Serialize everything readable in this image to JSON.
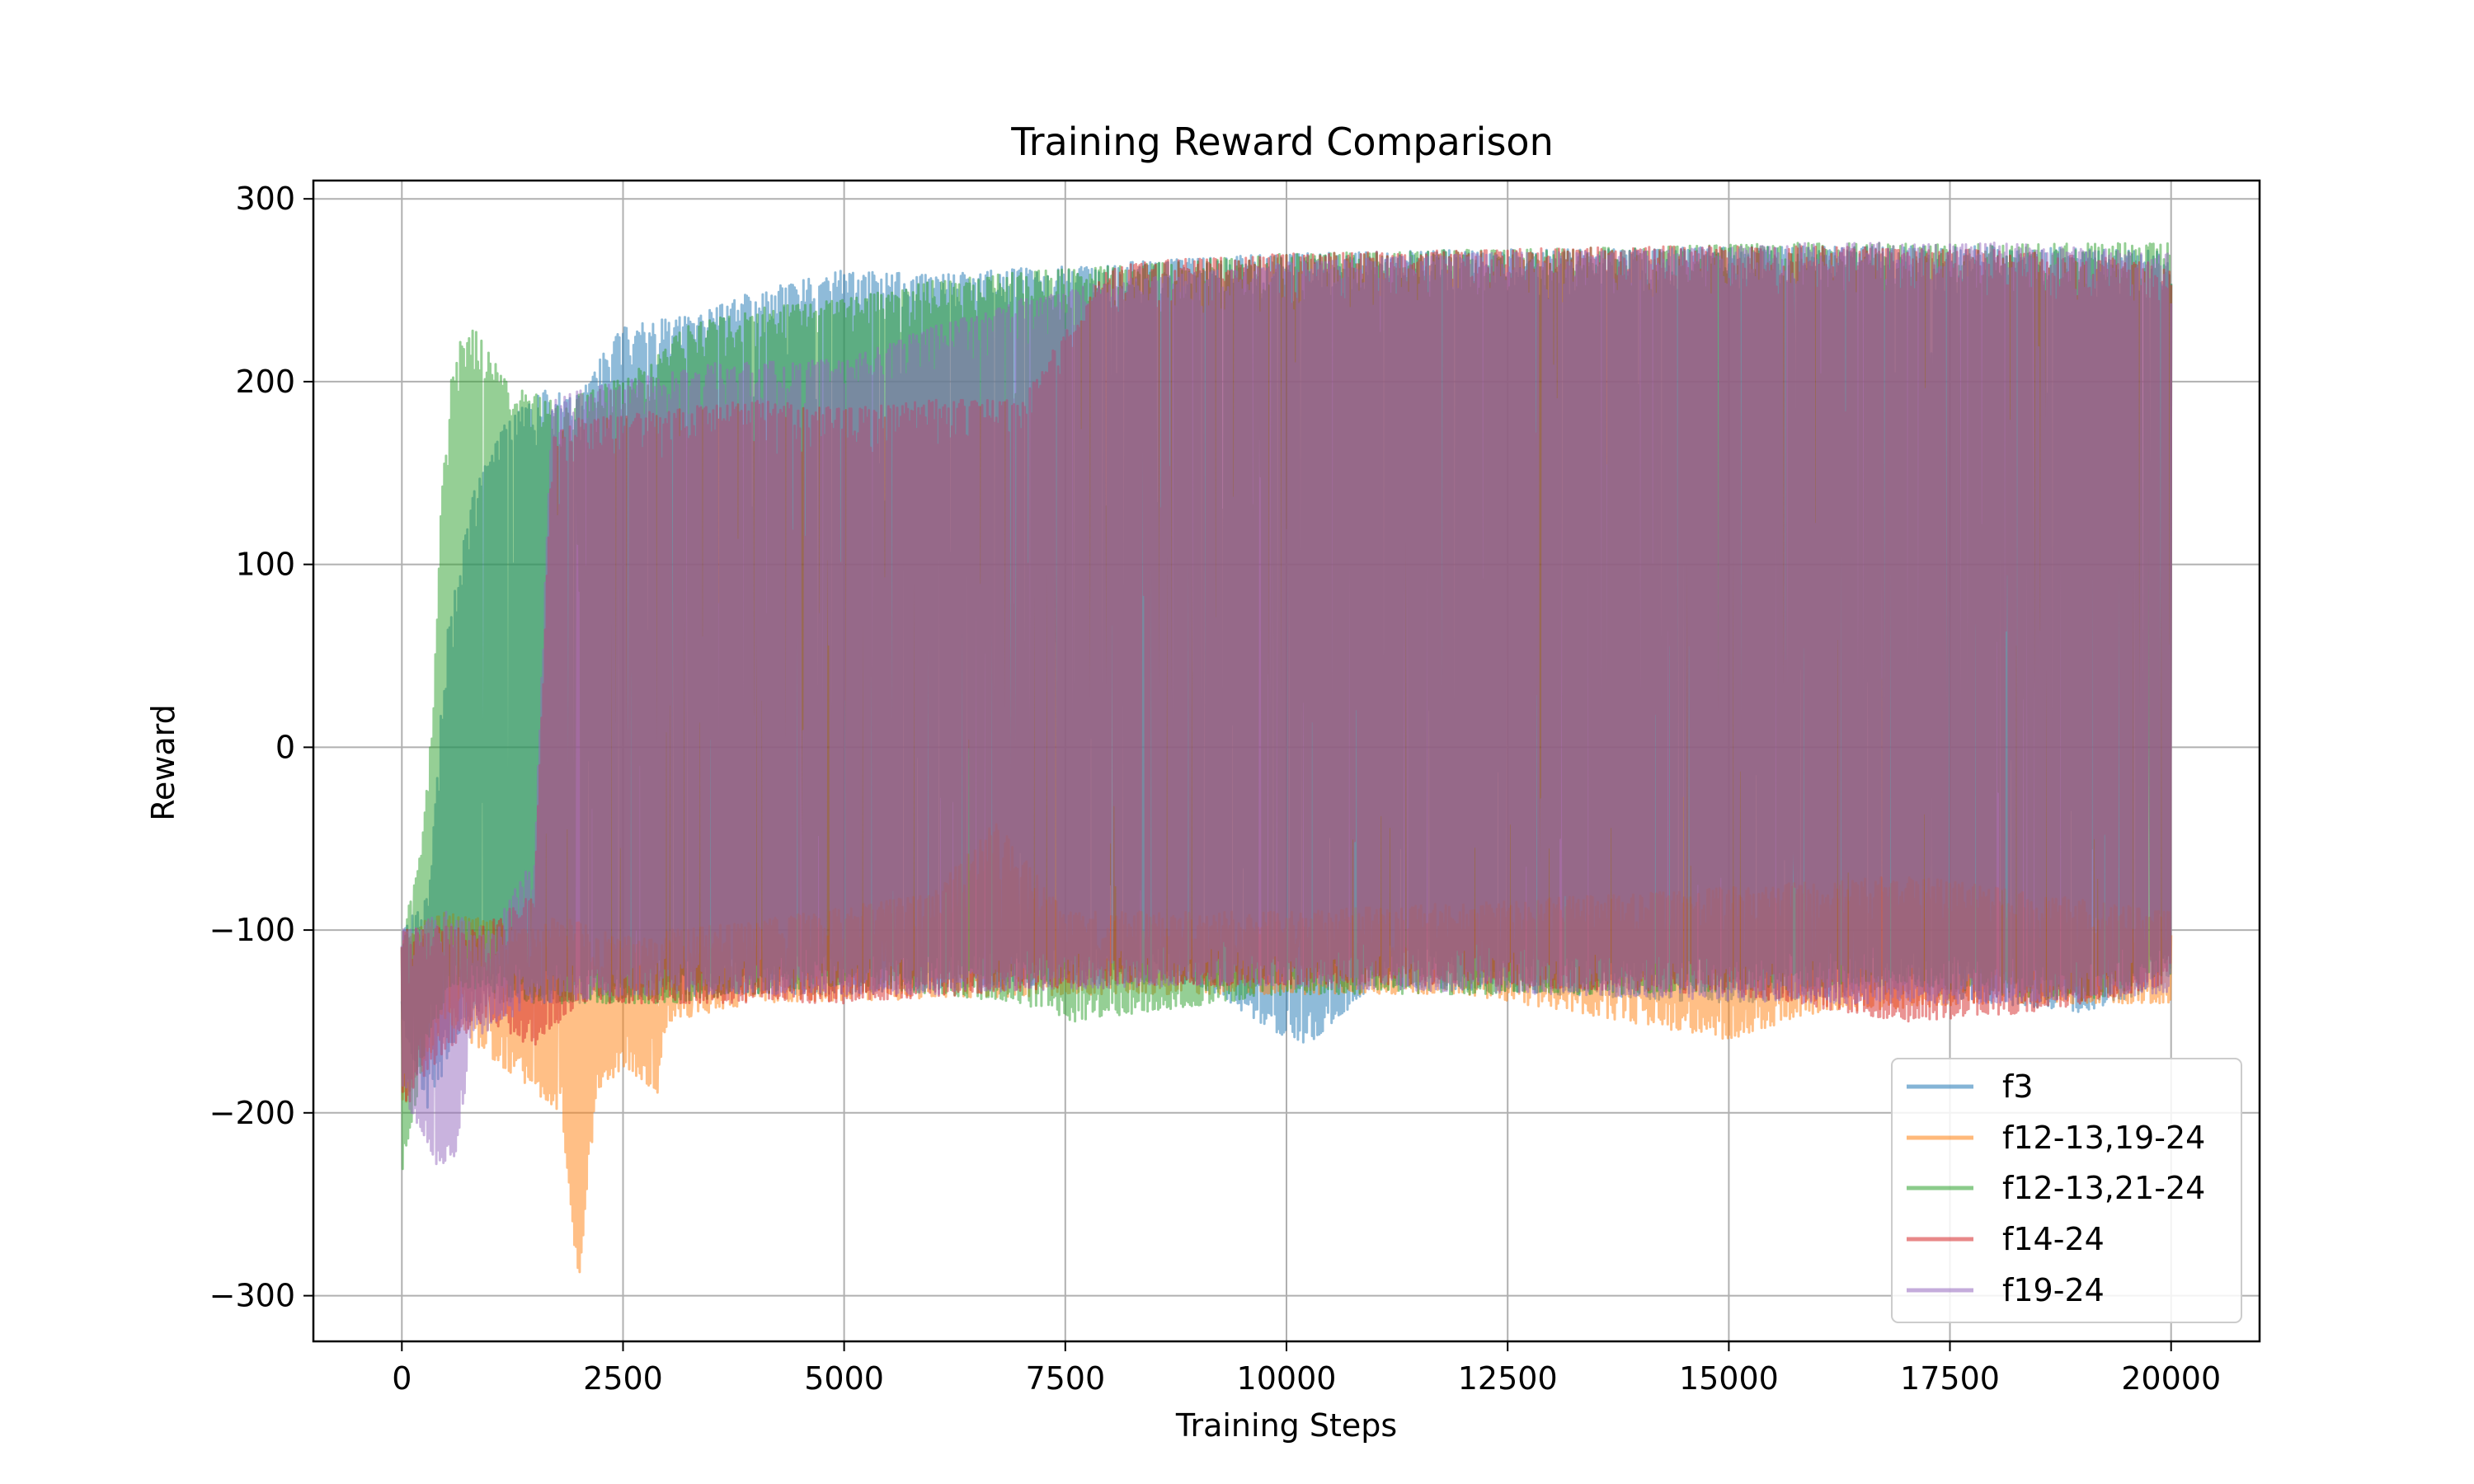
{
  "chart_data": {
    "type": "line",
    "title": "Training Reward Comparison",
    "xlabel": "Training Steps",
    "ylabel": "Reward",
    "xlim": [
      -1000,
      21000
    ],
    "ylim": [
      -325,
      310
    ],
    "xticks": [
      0,
      2500,
      5000,
      7500,
      10000,
      12500,
      15000,
      17500,
      20000
    ],
    "xtick_labels": [
      "0",
      "2500",
      "5000",
      "7500",
      "10000",
      "12500",
      "15000",
      "17500",
      "20000"
    ],
    "yticks": [
      -300,
      -200,
      -100,
      0,
      100,
      200,
      300
    ],
    "ytick_labels": [
      "−300",
      "−200",
      "−100",
      "0",
      "100",
      "200",
      "300"
    ],
    "grid": true,
    "legend_position": "lower-right",
    "style": "noisy episode rewards drawn as semi-transparent lines; values below are approximate upper/lower envelopes",
    "series": [
      {
        "name": "f3",
        "color": "#1f77b4",
        "upper": [
          [
            0,
            -100
          ],
          [
            300,
            -80
          ],
          [
            500,
            60
          ],
          [
            800,
            140
          ],
          [
            1200,
            180
          ],
          [
            1600,
            195
          ],
          [
            2000,
            195
          ],
          [
            2200,
            210
          ],
          [
            2500,
            230
          ],
          [
            3000,
            235
          ],
          [
            3500,
            240
          ],
          [
            4000,
            250
          ],
          [
            4500,
            255
          ],
          [
            5000,
            262
          ],
          [
            6000,
            258
          ],
          [
            7000,
            262
          ],
          [
            8000,
            265
          ],
          [
            10000,
            270
          ],
          [
            12000,
            272
          ],
          [
            14000,
            273
          ],
          [
            16000,
            274
          ],
          [
            18000,
            274
          ],
          [
            20000,
            272
          ]
        ],
        "lower": [
          [
            0,
            -150
          ],
          [
            300,
            -200
          ],
          [
            600,
            -160
          ],
          [
            1000,
            -140
          ],
          [
            2000,
            -140
          ],
          [
            3000,
            -135
          ],
          [
            5000,
            -135
          ],
          [
            7000,
            -130
          ],
          [
            9000,
            -130
          ],
          [
            10200,
            -165
          ],
          [
            11000,
            -130
          ],
          [
            13000,
            -135
          ],
          [
            15000,
            -140
          ],
          [
            17000,
            -135
          ],
          [
            19000,
            -145
          ],
          [
            20000,
            -130
          ]
        ]
      },
      {
        "name": "f12-13,19-24",
        "color": "#ff7f0e",
        "upper": [
          [
            0,
            -100
          ],
          [
            500,
            -90
          ],
          [
            1000,
            -95
          ],
          [
            1500,
            -100
          ],
          [
            1800,
            -90
          ],
          [
            2200,
            -100
          ],
          [
            2800,
            -105
          ],
          [
            3000,
            -100
          ],
          [
            4000,
            -95
          ],
          [
            6000,
            -80
          ],
          [
            6700,
            -40
          ],
          [
            7500,
            -90
          ],
          [
            10000,
            -90
          ],
          [
            14000,
            -80
          ],
          [
            17000,
            -70
          ],
          [
            20000,
            -90
          ]
        ],
        "lower": [
          [
            0,
            -200
          ],
          [
            500,
            -150
          ],
          [
            1000,
            -170
          ],
          [
            1800,
            -200
          ],
          [
            1900,
            -250
          ],
          [
            2000,
            -295
          ],
          [
            2200,
            -190
          ],
          [
            2500,
            -175
          ],
          [
            2900,
            -190
          ],
          [
            3000,
            -150
          ],
          [
            4000,
            -140
          ],
          [
            8000,
            -135
          ],
          [
            12000,
            -135
          ],
          [
            15000,
            -160
          ],
          [
            16000,
            -145
          ],
          [
            18000,
            -140
          ],
          [
            20000,
            -140
          ]
        ]
      },
      {
        "name": "f12-13,21-24",
        "color": "#2ca02c",
        "upper": [
          [
            0,
            -100
          ],
          [
            200,
            -60
          ],
          [
            350,
            20
          ],
          [
            450,
            140
          ],
          [
            550,
            200
          ],
          [
            700,
            230
          ],
          [
            850,
            232
          ],
          [
            1000,
            215
          ],
          [
            1200,
            200
          ],
          [
            1400,
            195
          ],
          [
            1800,
            190
          ],
          [
            2400,
            200
          ],
          [
            2800,
            210
          ],
          [
            3200,
            230
          ],
          [
            4000,
            240
          ],
          [
            5000,
            245
          ],
          [
            6000,
            255
          ],
          [
            7000,
            260
          ],
          [
            8000,
            263
          ],
          [
            10000,
            270
          ],
          [
            12000,
            272
          ],
          [
            14000,
            274
          ],
          [
            16000,
            276
          ],
          [
            18000,
            275
          ],
          [
            20000,
            276
          ]
        ],
        "lower": [
          [
            0,
            -235
          ],
          [
            300,
            -160
          ],
          [
            600,
            -130
          ],
          [
            1500,
            -140
          ],
          [
            3000,
            -140
          ],
          [
            5000,
            -130
          ],
          [
            7000,
            -140
          ],
          [
            7600,
            -150
          ],
          [
            10000,
            -135
          ],
          [
            14000,
            -135
          ],
          [
            17000,
            -130
          ],
          [
            19000,
            -140
          ],
          [
            20000,
            -125
          ]
        ]
      },
      {
        "name": "f14-24",
        "color": "#d62728",
        "upper": [
          [
            0,
            -100
          ],
          [
            1000,
            -95
          ],
          [
            1500,
            -80
          ],
          [
            1700,
            170
          ],
          [
            2000,
            180
          ],
          [
            2500,
            182
          ],
          [
            3000,
            185
          ],
          [
            4000,
            190
          ],
          [
            5000,
            185
          ],
          [
            6000,
            190
          ],
          [
            7000,
            190
          ],
          [
            8000,
            265
          ],
          [
            10000,
            270
          ],
          [
            12000,
            272
          ],
          [
            14000,
            274
          ],
          [
            16000,
            274
          ],
          [
            18000,
            272
          ],
          [
            20000,
            265
          ]
        ],
        "lower": [
          [
            0,
            -200
          ],
          [
            500,
            -165
          ],
          [
            1000,
            -150
          ],
          [
            1500,
            -165
          ],
          [
            2000,
            -140
          ],
          [
            3000,
            -140
          ],
          [
            5000,
            -140
          ],
          [
            8000,
            -130
          ],
          [
            12000,
            -130
          ],
          [
            15000,
            -135
          ],
          [
            17000,
            -150
          ],
          [
            18500,
            -145
          ],
          [
            20000,
            -130
          ]
        ]
      },
      {
        "name": "f19-24",
        "color": "#9467bd",
        "upper": [
          [
            0,
            -100
          ],
          [
            500,
            -90
          ],
          [
            1000,
            -100
          ],
          [
            1500,
            -60
          ],
          [
            1700,
            190
          ],
          [
            2000,
            195
          ],
          [
            2500,
            200
          ],
          [
            3000,
            205
          ],
          [
            3500,
            210
          ],
          [
            5000,
            212
          ],
          [
            6000,
            230
          ],
          [
            7000,
            245
          ],
          [
            8000,
            255
          ],
          [
            10000,
            265
          ],
          [
            12000,
            270
          ],
          [
            14000,
            272
          ],
          [
            16000,
            276
          ],
          [
            18000,
            276
          ],
          [
            20000,
            270
          ]
        ],
        "lower": [
          [
            0,
            -190
          ],
          [
            400,
            -230
          ],
          [
            600,
            -225
          ],
          [
            800,
            -160
          ],
          [
            1500,
            -140
          ],
          [
            3000,
            -135
          ],
          [
            6000,
            -135
          ],
          [
            9000,
            -130
          ],
          [
            13000,
            -135
          ],
          [
            16000,
            -140
          ],
          [
            18000,
            -140
          ],
          [
            20000,
            -135
          ]
        ]
      }
    ]
  }
}
